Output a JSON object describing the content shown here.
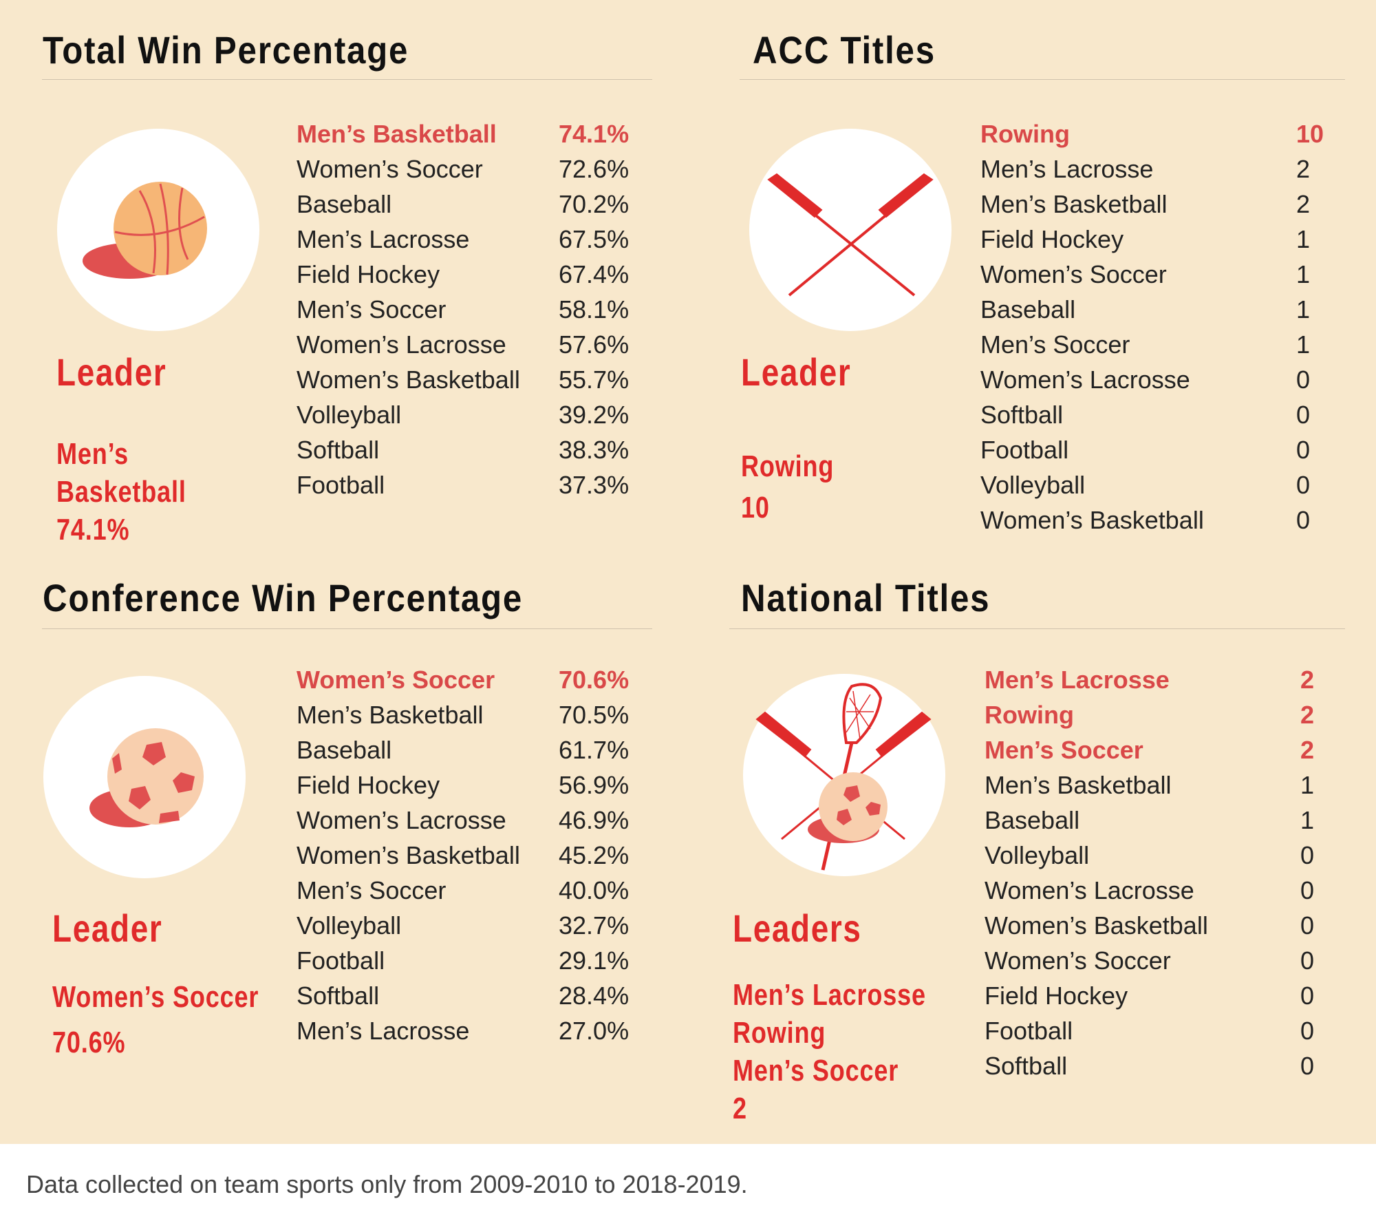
{
  "colors": {
    "background": "#f8e8cc",
    "accent": "#e02a2a",
    "highlight": "#d94848"
  },
  "sections": {
    "total_win": {
      "title": "Total Win Percentage",
      "icon": "basketball-icon",
      "leader_label": "Leader",
      "leader_lines": [
        "Men’s",
        "Basketball",
        "74.1%"
      ],
      "rows": [
        {
          "name": "Men’s Basketball",
          "value": "74.1%",
          "highlight": true
        },
        {
          "name": "Women’s Soccer",
          "value": "72.6%"
        },
        {
          "name": "Baseball",
          "value": "70.2%"
        },
        {
          "name": "Men’s Lacrosse",
          "value": "67.5%"
        },
        {
          "name": "Field Hockey",
          "value": "67.4%"
        },
        {
          "name": "Men’s Soccer",
          "value": "58.1%"
        },
        {
          "name": "Women’s Lacrosse",
          "value": "57.6%"
        },
        {
          "name": "Women’s Basketball",
          "value": "55.7%"
        },
        {
          "name": "Volleyball",
          "value": "39.2%"
        },
        {
          "name": "Softball",
          "value": "38.3%"
        },
        {
          "name": "Football",
          "value": "37.3%"
        }
      ]
    },
    "acc_titles": {
      "title": "ACC Titles",
      "icon": "crossed-oars-icon",
      "leader_label": "Leader",
      "leader_lines": [
        "Rowing",
        "10"
      ],
      "rows": [
        {
          "name": "Rowing",
          "value": "10",
          "highlight": true
        },
        {
          "name": "Men’s Lacrosse",
          "value": "2"
        },
        {
          "name": "Men’s Basketball",
          "value": "2"
        },
        {
          "name": "Field Hockey",
          "value": "1"
        },
        {
          "name": "Women’s Soccer",
          "value": "1"
        },
        {
          "name": "Baseball",
          "value": "1"
        },
        {
          "name": "Men’s Soccer",
          "value": "1"
        },
        {
          "name": "Women’s Lacrosse",
          "value": "0"
        },
        {
          "name": "Softball",
          "value": "0"
        },
        {
          "name": "Football",
          "value": "0"
        },
        {
          "name": "Volleyball",
          "value": "0"
        },
        {
          "name": "Women’s Basketball",
          "value": "0"
        }
      ]
    },
    "conf_win": {
      "title": "Conference Win Percentage",
      "icon": "soccer-ball-icon",
      "leader_label": "Leader",
      "leader_lines": [
        "Women’s Soccer",
        "70.6%"
      ],
      "rows": [
        {
          "name": "Women’s Soccer",
          "value": "70.6%",
          "highlight": true
        },
        {
          "name": "Men’s Basketball",
          "value": "70.5%"
        },
        {
          "name": "Baseball",
          "value": "61.7%"
        },
        {
          "name": "Field Hockey",
          "value": "56.9%"
        },
        {
          "name": "Women’s Lacrosse",
          "value": "46.9%"
        },
        {
          "name": "Women’s Basketball",
          "value": "45.2%"
        },
        {
          "name": "Men’s Soccer",
          "value": "40.0%"
        },
        {
          "name": "Volleyball",
          "value": "32.7%"
        },
        {
          "name": "Football",
          "value": "29.1%"
        },
        {
          "name": "Softball",
          "value": "28.4%"
        },
        {
          "name": "Men’s Lacrosse",
          "value": "27.0%"
        }
      ]
    },
    "national_titles": {
      "title": "National Titles",
      "icon": "lacrosse-oars-soccer-icon",
      "leader_label": "Leaders",
      "leader_lines": [
        "Men’s Lacrosse",
        "Rowing",
        "Men’s Soccer",
        "2"
      ],
      "rows": [
        {
          "name": "Men’s Lacrosse",
          "value": "2",
          "highlight": true
        },
        {
          "name": "Rowing",
          "value": "2",
          "highlight": true
        },
        {
          "name": "Men’s Soccer",
          "value": "2",
          "highlight": true
        },
        {
          "name": "Men’s Basketball",
          "value": "1"
        },
        {
          "name": "Baseball",
          "value": "1"
        },
        {
          "name": "Volleyball",
          "value": "0"
        },
        {
          "name": "Women’s Lacrosse",
          "value": "0"
        },
        {
          "name": "Women’s Basketball",
          "value": "0"
        },
        {
          "name": "Women’s Soccer",
          "value": "0"
        },
        {
          "name": "Field Hockey",
          "value": "0"
        },
        {
          "name": "Football",
          "value": "0"
        },
        {
          "name": "Softball",
          "value": "0"
        }
      ]
    }
  },
  "footnote": "Data collected on team sports only from 2009-2010 to 2018-2019."
}
